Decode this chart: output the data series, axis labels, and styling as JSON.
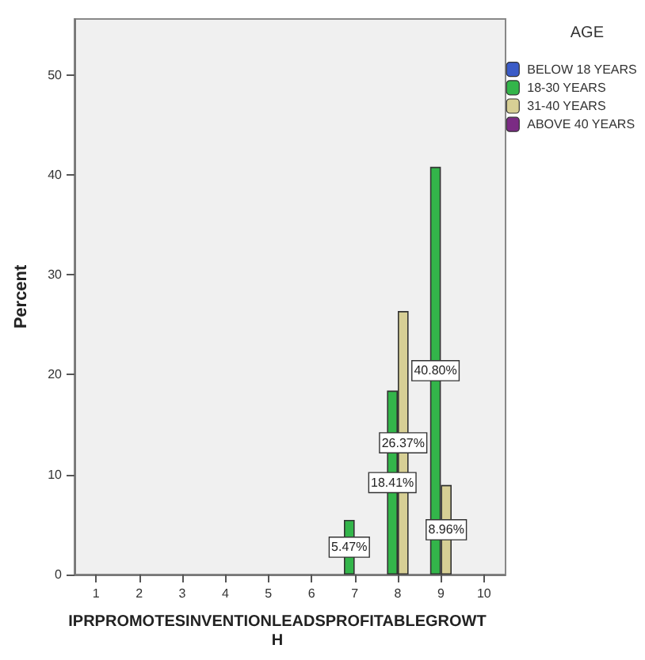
{
  "chart_data": {
    "type": "bar",
    "xlabel": "IPRPROMOTESINVENTIONLEADSPROFITABLEGROWTH",
    "ylabel": "Percent",
    "legend_title": "AGE",
    "legend": "top right",
    "grid": false,
    "categories": [
      "1",
      "2",
      "3",
      "4",
      "5",
      "6",
      "7",
      "8",
      "9",
      "10"
    ],
    "ylim": [
      0,
      55.6
    ],
    "yticks": [
      0,
      10,
      20,
      30,
      40,
      50
    ],
    "series": [
      {
        "name": "BELOW 18 YEARS",
        "color": "#3a5bc7",
        "values": [
          null,
          null,
          null,
          null,
          null,
          null,
          null,
          null,
          null,
          null
        ]
      },
      {
        "name": "18-30 YEARS",
        "color": "#33b54a",
        "values": [
          null,
          null,
          null,
          null,
          null,
          null,
          5.47,
          18.41,
          40.8,
          null
        ],
        "value_labels": [
          null,
          null,
          null,
          null,
          null,
          null,
          "5.47%",
          "18.41%",
          "40.80%",
          null
        ]
      },
      {
        "name": "31-40 YEARS",
        "color": "#d7cf95",
        "values": [
          null,
          null,
          null,
          null,
          null,
          null,
          null,
          26.37,
          8.96,
          null
        ],
        "value_labels": [
          null,
          null,
          null,
          null,
          null,
          null,
          null,
          "26.37%",
          "8.96%",
          null
        ]
      },
      {
        "name": "ABOVE 40 YEARS",
        "color": "#7b2b84",
        "values": [
          null,
          null,
          null,
          null,
          null,
          null,
          null,
          null,
          null,
          null
        ]
      }
    ]
  }
}
